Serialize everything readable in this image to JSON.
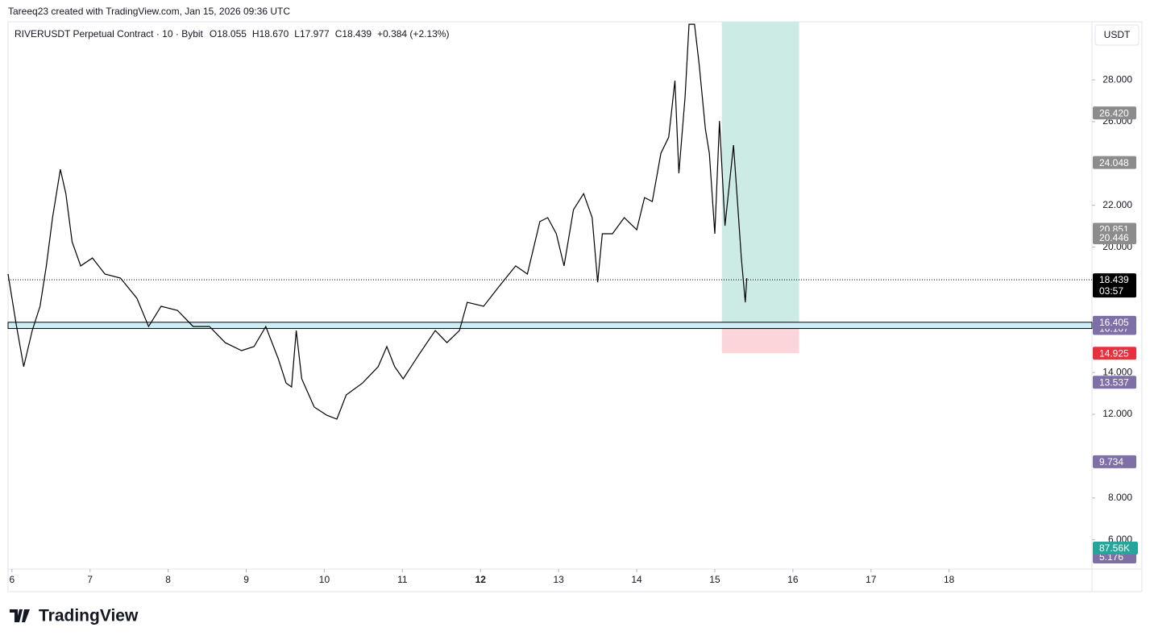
{
  "chart_data": {
    "type": "line",
    "header": "Tareeq23 created with TradingView.com, Jan 15, 2026 09:36 UTC",
    "symbol": "RIVERUSDT Perpetual Contract · 10 · Bybit",
    "ohlc": [
      "O18.055",
      "H18.670",
      "L17.977",
      "C18.439",
      "+0.384 (+2.13%)"
    ],
    "currency": "USDT",
    "brand": "TradingView",
    "color": "#000000",
    "x": [
      5.95,
      6.05,
      6.15,
      6.26,
      6.36,
      6.44,
      6.52,
      6.62,
      6.69,
      6.77,
      6.88,
      7.03,
      7.19,
      7.39,
      7.6,
      7.75,
      7.91,
      8.12,
      8.32,
      8.53,
      8.73,
      8.94,
      9.1,
      9.25,
      9.41,
      9.51,
      9.58,
      9.64,
      9.71,
      9.87,
      10.03,
      10.16,
      10.28,
      10.49,
      10.69,
      10.8,
      10.9,
      11.01,
      11.21,
      11.42,
      11.57,
      11.73,
      11.83,
      12.04,
      12.24,
      12.45,
      12.6,
      12.76,
      12.86,
      12.97,
      13.07,
      13.19,
      13.32,
      13.43,
      13.5,
      13.56,
      13.69,
      13.84,
      14.0,
      14.1,
      14.2,
      14.31,
      14.41,
      14.49,
      14.54,
      14.62,
      14.67,
      14.74,
      14.8,
      14.88,
      14.93,
      15.0,
      15.06,
      15.13,
      15.24,
      15.29,
      15.34,
      15.39,
      15.41
    ],
    "values": [
      18.71,
      16.4,
      14.28,
      16.01,
      17.17,
      19.1,
      21.41,
      23.72,
      22.56,
      20.25,
      19.1,
      19.48,
      18.71,
      18.52,
      17.55,
      16.2,
      17.17,
      16.97,
      16.2,
      16.2,
      15.43,
      15.05,
      15.24,
      16.2,
      14.66,
      13.5,
      13.31,
      16.01,
      13.7,
      12.35,
      11.96,
      11.77,
      12.93,
      13.5,
      14.28,
      15.24,
      14.28,
      13.7,
      14.85,
      16.01,
      15.43,
      16.01,
      17.36,
      17.17,
      18.13,
      19.1,
      18.71,
      21.22,
      21.41,
      20.64,
      19.1,
      21.79,
      22.56,
      21.41,
      18.32,
      20.64,
      20.64,
      21.41,
      20.83,
      22.37,
      22.18,
      24.49,
      25.26,
      27.96,
      23.53,
      27.19,
      30.66,
      30.66,
      28.73,
      25.65,
      24.49,
      20.64,
      26.03,
      21.02,
      24.88,
      22.18,
      19.48,
      17.36,
      18.52
    ],
    "xlim": [
      5.95,
      19.83
    ],
    "ylim": [
      4.6,
      30.78
    ],
    "xticks": [
      6,
      7,
      8,
      9,
      10,
      11,
      12,
      13,
      14,
      15,
      16,
      17,
      18
    ],
    "xticks_bold": [
      12
    ],
    "yticks": [
      {
        "value": 6,
        "label": "6.000"
      },
      {
        "value": 8,
        "label": "8.000"
      },
      {
        "value": 12,
        "label": "12.000"
      },
      {
        "value": 14,
        "label": "14.000"
      },
      {
        "value": 20,
        "label": "20.000"
      },
      {
        "value": 22,
        "label": "22.000"
      },
      {
        "value": 26,
        "label": "26.000"
      },
      {
        "value": 28,
        "label": "28.000"
      }
    ],
    "last_price": {
      "value": 18.439,
      "label": "18.439",
      "countdown": "03:57",
      "color": "#000000"
    },
    "zone": {
      "low": 16.107,
      "high": 16.405,
      "color": "#cdeef7"
    },
    "position": {
      "x": [
        15.09,
        16.08
      ],
      "entry": 16.405,
      "target": 30.78,
      "stop": 14.925,
      "profit_color": "#cdebe5",
      "loss_color": "#fbd5d9"
    },
    "price_tags": [
      {
        "value": 26.42,
        "label": "26.420",
        "color": "#8c8c8c"
      },
      {
        "value": 24.048,
        "label": "24.048",
        "color": "#8c8c8c"
      },
      {
        "value": 20.851,
        "label": "20.851",
        "color": "#8c8c8c"
      },
      {
        "value": 20.446,
        "label": "20.446",
        "color": "#8c8c8c"
      },
      {
        "value": 16.107,
        "label": "16.107",
        "color": "#7e6fa6"
      },
      {
        "value": 16.405,
        "label": "16.405",
        "color": "#7e6fa6"
      },
      {
        "value": 14.925,
        "label": "14.925",
        "color": "#e8313f"
      },
      {
        "value": 13.537,
        "label": "13.537",
        "color": "#7e6fa6"
      },
      {
        "value": 9.734,
        "label": "9.734",
        "color": "#7e6fa6"
      },
      {
        "value": 5.176,
        "label": "5.176",
        "color": "#7e6fa6"
      }
    ],
    "volume_tag": {
      "value": 87560,
      "label": "87.56K",
      "color": "#26a69a"
    }
  }
}
